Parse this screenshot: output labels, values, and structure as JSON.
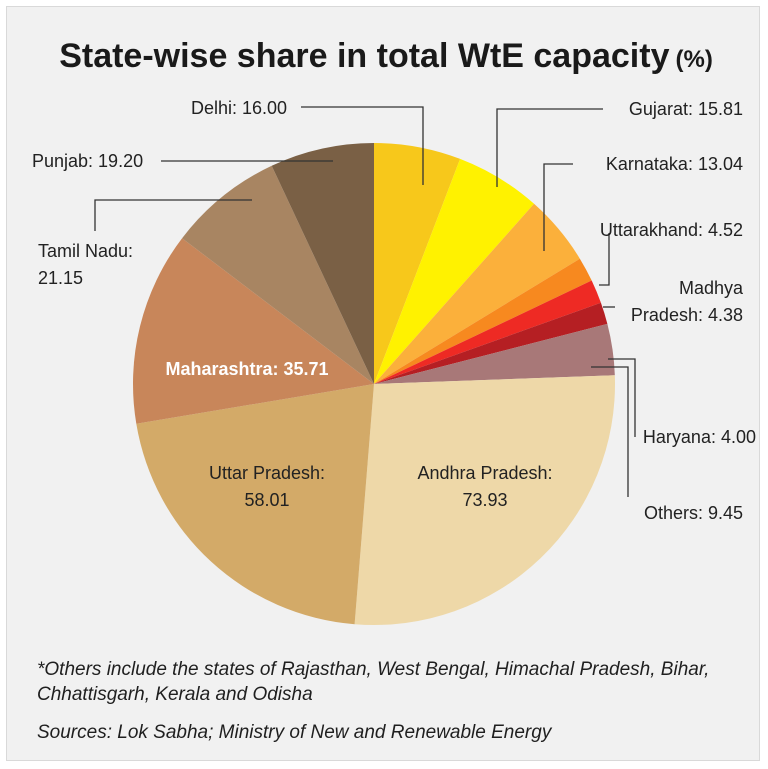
{
  "chart_data": {
    "type": "pie",
    "title": "State-wise share in total WtE capacity",
    "title_unit": "(%)",
    "slices": [
      {
        "label": "Delhi",
        "value": 16.0,
        "display": "Delhi: 16.00",
        "color": "#f7c81b"
      },
      {
        "label": "Gujarat",
        "value": 15.81,
        "display": "Gujarat: 15.81",
        "color": "#fff200"
      },
      {
        "label": "Karnataka",
        "value": 13.04,
        "display": "Karnataka: 13.04",
        "color": "#fbb03b"
      },
      {
        "label": "Uttarakhand",
        "value": 4.52,
        "display": "Uttarakhand: 4.52",
        "color": "#f7891f"
      },
      {
        "label": "Madhya Pradesh",
        "value": 4.38,
        "display_lines": [
          "Madhya",
          "Pradesh: 4.38"
        ],
        "color": "#ee2a24"
      },
      {
        "label": "Haryana",
        "value": 4.0,
        "display": "Haryana: 4.00",
        "color": "#b51f23"
      },
      {
        "label": "Others",
        "value": 9.45,
        "display": "Others: 9.45",
        "color": "#a87878"
      },
      {
        "label": "Andhra Pradesh",
        "value": 73.93,
        "display_lines": [
          "Andhra Pradesh:",
          "73.93"
        ],
        "color": "#eed8a8"
      },
      {
        "label": "Uttar Pradesh",
        "value": 58.01,
        "display_lines": [
          "Uttar Pradesh:",
          "58.01"
        ],
        "color": "#d3aa68"
      },
      {
        "label": "Maharashtra",
        "value": 35.71,
        "display": "Maharashtra: 35.71",
        "color": "#c8865a"
      },
      {
        "label": "Tamil Nadu",
        "value": 21.15,
        "display_lines": [
          "Tamil Nadu:",
          "21.15"
        ],
        "color": "#a88562"
      },
      {
        "label": "Punjab",
        "value": 19.2,
        "display": "Punjab: 19.20",
        "color": "#7a6045"
      }
    ]
  },
  "footnote": "*Others include the states of Rajasthan, West Bengal, Himachal Pradesh, Bihar, Chhattisgarh, Kerala and Odisha",
  "source": "Sources: Lok Sabha; Ministry of New and Renewable Energy"
}
